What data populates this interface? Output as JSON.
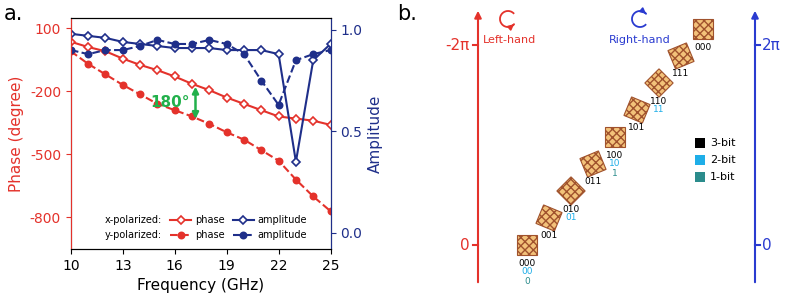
{
  "chart_data": {
    "type": "line",
    "panel_label": "a.",
    "xlabel": "Frequency (GHz)",
    "ylabel": "Phase (degree)",
    "y2label": "Amplitude",
    "xlim": [
      10,
      25
    ],
    "xticks": [
      10,
      13,
      16,
      19,
      22,
      25
    ],
    "ylim": [
      -950,
      150
    ],
    "yticks": [
      -800,
      -500,
      -200,
      100
    ],
    "y2lim": [
      -0.08,
      1.06
    ],
    "y2ticks": [
      {
        "value": 0,
        "label": "0.0"
      },
      0.5,
      {
        "value": 1,
        "label": "1.0"
      }
    ],
    "legend": "lower left",
    "x": [
      10,
      11,
      12,
      13,
      14,
      15,
      16,
      17,
      18,
      19,
      20,
      21,
      22,
      23,
      24,
      25
    ],
    "series": [
      {
        "name": "phase",
        "group": "x-polarized:",
        "color": "#e4322b",
        "marker": "open_diamond",
        "line_style": "solid",
        "values": [
          35,
          10,
          -10,
          -45,
          -75,
          -100,
          -130,
          -165,
          -195,
          -230,
          -260,
          -290,
          -320,
          -330,
          -340,
          -360
        ]
      },
      {
        "name": "amplitude",
        "group": "x-polarized:",
        "color": "#1f2f8a",
        "marker": "open_diamond",
        "line_style": "solid",
        "axis": "y2",
        "values": [
          0.98,
          0.97,
          0.96,
          0.94,
          0.93,
          0.92,
          0.91,
          0.91,
          0.91,
          0.9,
          0.9,
          0.9,
          0.88,
          0.35,
          0.85,
          0.93
        ]
      },
      {
        "name": "phase",
        "group": "y-polarized:",
        "color": "#e4322b",
        "marker": "circle",
        "line_style": "dashed",
        "values": [
          -10,
          -70,
          -120,
          -170,
          -215,
          -260,
          -290,
          -320,
          -355,
          -395,
          -430,
          -480,
          -530,
          -620,
          -700,
          -770
        ]
      },
      {
        "name": "amplitude",
        "group": "y-polarized:",
        "color": "#1f2f8a",
        "marker": "circle",
        "line_style": "dashed",
        "axis": "y2",
        "values": [
          0.9,
          0.88,
          0.9,
          0.9,
          0.92,
          0.95,
          0.93,
          0.93,
          0.95,
          0.93,
          0.88,
          0.75,
          0.63,
          0.85,
          0.88,
          0.9
        ]
      }
    ],
    "annotations": [
      {
        "text": "180°",
        "x": 17.2,
        "y": [
          -165,
          -345
        ],
        "color": "#22b04b"
      }
    ]
  },
  "diagram": {
    "panel_label": "b.",
    "left_axis": {
      "bottom": "0",
      "top": "-2π",
      "label": "Left-hand"
    },
    "right_axis": {
      "bottom": "0",
      "top": "2π",
      "label": "Right-hand"
    },
    "tiles": [
      {
        "code": "000",
        "code_2bit": "00",
        "code_1bit": "0"
      },
      {
        "code": "001"
      },
      {
        "code": "010",
        "code_2bit": "01"
      },
      {
        "code": "011"
      },
      {
        "code": "100",
        "code_2bit": "10",
        "code_1bit": "1"
      },
      {
        "code": "101"
      },
      {
        "code": "110",
        "code_2bit": "11"
      },
      {
        "code": "111"
      },
      {
        "code": "000"
      }
    ],
    "bit_key": [
      {
        "label": "3-bit",
        "color": "#000000"
      },
      {
        "label": "2-bit",
        "color": "#1eaee8"
      },
      {
        "label": "1-bit",
        "color": "#2b8c8c"
      }
    ]
  }
}
